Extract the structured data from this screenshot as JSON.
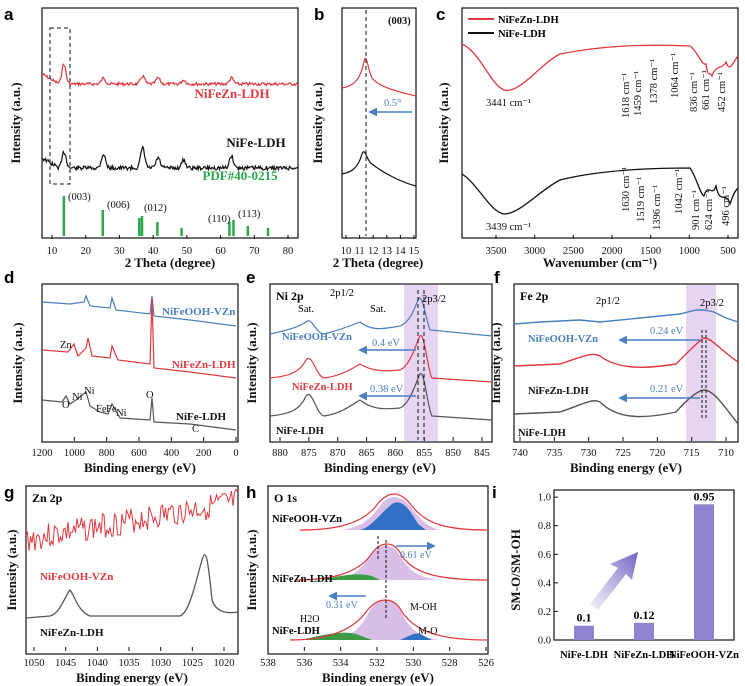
{
  "colors": {
    "red": "#e0383d",
    "black": "#111111",
    "green": "#2aa84a",
    "blue": "#4a7fc0",
    "gray": "#555555",
    "purple": "#b98ad6",
    "bar": "#8f84cf"
  },
  "panels": [
    {
      "letter": "a",
      "xlabel": "2 Theta (degree)",
      "ylabel": "Intensity (a.u.)",
      "xticks": [
        "10",
        "20",
        "30",
        "40",
        "50",
        "60",
        "70",
        "80"
      ],
      "series": [
        "NiFeZn-LDH",
        "NiFe-LDH"
      ],
      "reference": "PDF#40-0215",
      "peaks": [
        "(003)",
        "(006)",
        "(012)",
        "(110)",
        "(113)"
      ]
    },
    {
      "letter": "b",
      "xlabel": "2 Theta (degree)",
      "ylabel": "Intensity (a.u.)",
      "xticks": [
        "10",
        "11",
        "12",
        "13",
        "14",
        "15"
      ],
      "peak": "(003)",
      "shift": "0.5°"
    },
    {
      "letter": "c",
      "xlabel": "Wavenumber (cm⁻¹)",
      "ylabel": "Intensity (a.u.)",
      "xticks": [
        "3500",
        "3000",
        "2500",
        "2000",
        "1500",
        "1000",
        "500"
      ],
      "series": [
        "NiFeZn-LDH",
        "NiFe-LDH"
      ],
      "bands_top": [
        "3441 cm⁻¹",
        "1618 cm⁻¹",
        "1459 cm⁻¹",
        "1378 cm⁻¹",
        "1064 cm⁻¹",
        "836 cm⁻¹",
        "661 cm⁻¹",
        "452 cm⁻¹"
      ],
      "bands_bottom": [
        "3439 cm⁻¹",
        "1630 cm⁻¹",
        "1519 cm⁻¹",
        "1396 cm⁻¹",
        "1042 cm⁻¹",
        "901 cm⁻¹",
        "624 cm⁻¹",
        "496 cm⁻¹"
      ]
    },
    {
      "letter": "d",
      "xlabel": "Binding energy (eV)",
      "ylabel": "Intensity (a.u.)",
      "xticks": [
        "1200",
        "1000",
        "800",
        "600",
        "400",
        "200",
        "0"
      ],
      "series": [
        "NiFeOOH-VZn",
        "NiFeZn-LDH",
        "NiFe-LDH"
      ],
      "elements": [
        "Zn",
        "Ni",
        "Ni",
        "Fe",
        "Fe",
        "Ni",
        "O",
        "O",
        "C"
      ]
    },
    {
      "letter": "e",
      "title": "Ni 2p",
      "xlabel": "Binding energy (eV)",
      "ylabel": "Intensity (a.u.)",
      "xticks": [
        "880",
        "875",
        "870",
        "865",
        "860",
        "855",
        "850",
        "845"
      ],
      "series": [
        "NiFeOOH-VZn",
        "NiFeZn-LDH",
        "NiFe-LDH"
      ],
      "shifts": [
        "0.4 eV",
        "0.38 eV"
      ],
      "labels": [
        "2p1/2",
        "2p3/2",
        "Sat.",
        "Sat."
      ]
    },
    {
      "letter": "f",
      "title": "Fe 2p",
      "xlabel": "Binding energy (eV)",
      "ylabel": "Intensity (a.u.)",
      "xticks": [
        "740",
        "735",
        "730",
        "725",
        "720",
        "715",
        "710"
      ],
      "series": [
        "NiFeOOH-VZn",
        "NiFeZn-LDH",
        "NiFe-LDH"
      ],
      "shifts": [
        "0.24 eV",
        "0.21 eV"
      ],
      "labels": [
        "2p1/2",
        "2p3/2"
      ]
    },
    {
      "letter": "g",
      "title": "Zn 2p",
      "xlabel": "Binding energy (eV)",
      "ylabel": "Intensity (a.u.)",
      "xticks": [
        "1050",
        "1045",
        "1040",
        "1035",
        "1030",
        "1025",
        "1020"
      ],
      "series": [
        "NiFeOOH-VZn",
        "NiFeZn-LDH"
      ]
    },
    {
      "letter": "h",
      "title": "O 1s",
      "xlabel": "Binding energy (eV)",
      "ylabel": "Intensity (a.u.)",
      "xticks": [
        "538",
        "536",
        "534",
        "532",
        "530",
        "528",
        "526"
      ],
      "series": [
        "NiFeOOH-VZn",
        "NiFeZn-LDH",
        "NiFe-LDH"
      ],
      "shifts": [
        "0.61 eV",
        "0.31 eV"
      ],
      "components": [
        "H2O",
        "M-OH",
        "M-O"
      ]
    },
    {
      "letter": "i",
      "ylabel": "SM-O/SM-OH",
      "yticks": [
        "0.0",
        "0.2",
        "0.4",
        "0.6",
        "0.8",
        "1.0"
      ]
    }
  ],
  "chart_data": [
    {
      "type": "bar",
      "categories": [
        "NiFe-LDH",
        "NiFeZn-LDH",
        "NiFeOOH-VZn"
      ],
      "values": [
        0.1,
        0.12,
        0.95
      ],
      "value_labels": [
        "0.1",
        "0.12",
        "0.95"
      ],
      "ylabel": "SM-O/SM-OH",
      "ylim": [
        0,
        1.05
      ]
    },
    {
      "type": "line",
      "title": "",
      "xlabel": "2 Theta (degree)",
      "xlim": [
        5,
        80
      ],
      "series": [
        {
          "name": "NiFeZn-LDH",
          "peaks": [
            11.4,
            23.0,
            34.5,
            39.0,
            46.5,
            60.5
          ]
        },
        {
          "name": "NiFe-LDH",
          "peaks": [
            11.5,
            23.0,
            34.5,
            39.0,
            46.5,
            60.5
          ]
        }
      ],
      "reference_lines": [
        11.4,
        22.8,
        33.5,
        34.3,
        38.8,
        45.9,
        59.9,
        61.1,
        65.3,
        71.2
      ]
    }
  ]
}
